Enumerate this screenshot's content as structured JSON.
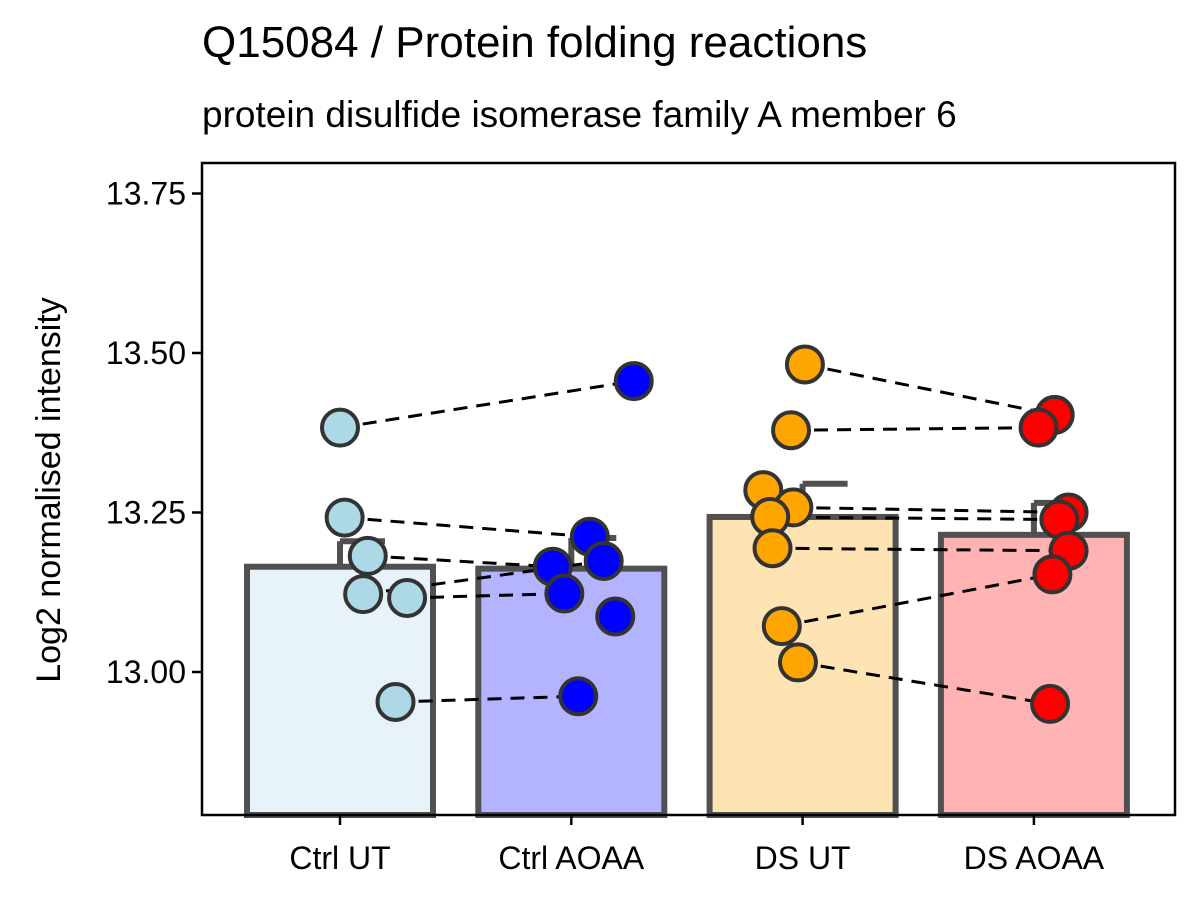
{
  "chart_data": {
    "type": "bar",
    "title": "Q15084 / Protein folding reactions",
    "subtitle": "protein disulfide isomerase family A member 6",
    "xlabel": "",
    "ylabel": "Log2 normalised intensity",
    "ylim": [
      12.78,
      13.8
    ],
    "yticks": [
      13.0,
      13.25,
      13.5,
      13.75
    ],
    "ytick_labels": [
      "13.00",
      "13.25",
      "13.50",
      "13.75"
    ],
    "grid": false,
    "legend": "none",
    "categories": [
      "Ctrl UT",
      "Ctrl AOAA",
      "DS UT",
      "DS AOAA"
    ],
    "bars": [
      {
        "category": "Ctrl UT",
        "mean": 13.165,
        "error_upper": 13.205,
        "fill": "#e8f3f9",
        "point_color": "#add8e6",
        "points": [
          {
            "x": 0.0,
            "y": 13.383
          },
          {
            "x": 0.02,
            "y": 13.242
          },
          {
            "x": 0.12,
            "y": 13.182
          },
          {
            "x": 0.1,
            "y": 13.122
          },
          {
            "x": 0.29,
            "y": 13.116
          },
          {
            "x": 0.24,
            "y": 12.953
          }
        ]
      },
      {
        "category": "Ctrl AOAA",
        "mean": 13.162,
        "error_upper": 13.21,
        "fill": "#b3b3ff",
        "point_color": "#0000ff",
        "points": [
          {
            "x": 1.27,
            "y": 13.456
          },
          {
            "x": 1.08,
            "y": 13.212
          },
          {
            "x": 0.92,
            "y": 13.165
          },
          {
            "x": 1.14,
            "y": 13.174
          },
          {
            "x": 0.97,
            "y": 13.123
          },
          {
            "x": 1.19,
            "y": 13.087
          },
          {
            "x": 1.03,
            "y": 12.962
          }
        ]
      },
      {
        "category": "DS UT",
        "mean": 13.243,
        "error_upper": 13.295,
        "fill": "#ffe4b3",
        "point_color": "#ffa500",
        "points": [
          {
            "x": 2.01,
            "y": 13.482
          },
          {
            "x": 1.95,
            "y": 13.379
          },
          {
            "x": 1.83,
            "y": 13.285
          },
          {
            "x": 1.96,
            "y": 13.258
          },
          {
            "x": 1.86,
            "y": 13.243
          },
          {
            "x": 1.87,
            "y": 13.194
          },
          {
            "x": 1.91,
            "y": 13.072
          },
          {
            "x": 1.98,
            "y": 13.015
          }
        ]
      },
      {
        "category": "DS AOAA",
        "mean": 13.215,
        "error_upper": 13.265,
        "fill": "#ffb3b3",
        "point_color": "#ff0000",
        "points": [
          {
            "x": 3.09,
            "y": 13.403
          },
          {
            "x": 3.02,
            "y": 13.383
          },
          {
            "x": 3.15,
            "y": 13.25
          },
          {
            "x": 3.11,
            "y": 13.239
          },
          {
            "x": 3.15,
            "y": 13.19
          },
          {
            "x": 3.08,
            "y": 13.153
          },
          {
            "x": 3.07,
            "y": 12.95
          }
        ]
      }
    ],
    "pairs": [
      [
        [
          0.0,
          13.383
        ],
        [
          1.27,
          13.456
        ]
      ],
      [
        [
          0.02,
          13.242
        ],
        [
          1.08,
          13.212
        ]
      ],
      [
        [
          0.12,
          13.182
        ],
        [
          0.92,
          13.165
        ]
      ],
      [
        [
          0.1,
          13.122
        ],
        [
          1.14,
          13.174
        ]
      ],
      [
        [
          0.29,
          13.116
        ],
        [
          0.97,
          13.123
        ]
      ],
      [
        [
          0.24,
          12.953
        ],
        [
          1.03,
          12.962
        ]
      ],
      [
        [
          2.01,
          13.482
        ],
        [
          3.09,
          13.403
        ]
      ],
      [
        [
          1.95,
          13.379
        ],
        [
          3.02,
          13.383
        ]
      ],
      [
        [
          1.96,
          13.258
        ],
        [
          3.15,
          13.25
        ]
      ],
      [
        [
          1.86,
          13.243
        ],
        [
          3.11,
          13.239
        ]
      ],
      [
        [
          1.87,
          13.194
        ],
        [
          3.15,
          13.19
        ]
      ],
      [
        [
          1.91,
          13.072
        ],
        [
          3.08,
          13.153
        ]
      ],
      [
        [
          1.98,
          13.015
        ],
        [
          3.07,
          12.95
        ]
      ]
    ],
    "bar_outline": "#505050",
    "point_outline": "#333333"
  }
}
